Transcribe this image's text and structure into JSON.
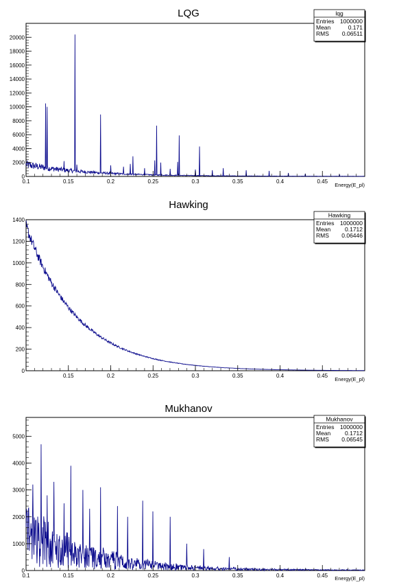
{
  "colors": {
    "line": "#0a0a8c",
    "axis": "#000000",
    "frame": "#000000"
  },
  "chart_data": [
    {
      "type": "line",
      "title": "LQG",
      "xlabel": "Energy(E_pl)",
      "ylabel": "",
      "xlim": [
        0.1,
        0.5
      ],
      "ylim": [
        0,
        22000
      ],
      "xticks": [
        "0.1",
        "0.15",
        "0.2",
        "0.25",
        "0.3",
        "0.35",
        "0.4",
        "0.45"
      ],
      "yticks": [
        "0",
        "2000",
        "4000",
        "6000",
        "8000",
        "10000",
        "12000",
        "14000",
        "16000",
        "18000",
        "20000"
      ],
      "stats": {
        "name": "lqg",
        "entries_label": "Entries",
        "entries": "1000000",
        "mean_label": "Mean",
        "mean": "0.171",
        "rms_label": "RMS",
        "rms": "0.06511"
      },
      "baseline": {
        "start": 1700,
        "decay": 14,
        "floor": 20,
        "noise": 0.35
      },
      "peaks": [
        [
          0.123,
          10500
        ],
        [
          0.125,
          10000
        ],
        [
          0.158,
          20400
        ],
        [
          0.188,
          8900
        ],
        [
          0.226,
          2900
        ],
        [
          0.223,
          1800
        ],
        [
          0.252,
          2300
        ],
        [
          0.254,
          7300
        ],
        [
          0.259,
          2000
        ],
        [
          0.281,
          5900
        ],
        [
          0.279,
          2100
        ],
        [
          0.305,
          4300
        ],
        [
          0.333,
          1200
        ],
        [
          0.36,
          900
        ],
        [
          0.387,
          800
        ],
        [
          0.145,
          2200
        ],
        [
          0.16,
          1700
        ],
        [
          0.2,
          1600
        ],
        [
          0.215,
          1400
        ],
        [
          0.24,
          1200
        ],
        [
          0.27,
          1100
        ],
        [
          0.3,
          1000
        ],
        [
          0.32,
          900
        ],
        [
          0.41,
          500
        ],
        [
          0.43,
          400
        ],
        [
          0.47,
          300
        ]
      ]
    },
    {
      "type": "line",
      "title": "Hawking",
      "xlabel": "Energy(E_pl)",
      "ylabel": "",
      "xlim": [
        0.1,
        0.5
      ],
      "ylim": [
        0,
        1400
      ],
      "xticks": [
        "0.15",
        "0.2",
        "0.25",
        "0.3",
        "0.35",
        "0.4",
        "0.45"
      ],
      "yticks": [
        "0",
        "200",
        "400",
        "600",
        "800",
        "1000",
        "1200",
        "1400"
      ],
      "stats": {
        "name": "Hawking",
        "entries_label": "Entries",
        "entries": "1000000",
        "mean_label": "Mean",
        "mean": "0.1712",
        "rms_label": "RMS",
        "rms": "0.06446"
      },
      "baseline": {
        "start": 1340,
        "decay": 16.5,
        "floor": 0,
        "noise": 0.04
      },
      "peaks": []
    },
    {
      "type": "line",
      "title": "Mukhanov",
      "xlabel": "Energy(E_pl)",
      "ylabel": "",
      "xlim": [
        0.1,
        0.5
      ],
      "ylim": [
        0,
        5700
      ],
      "xticks": [
        "0.1",
        "0.15",
        "0.2",
        "0.25",
        "0.3",
        "0.35",
        "0.4",
        "0.45"
      ],
      "yticks": [
        "0",
        "1000",
        "2000",
        "3000",
        "4000",
        "5000"
      ],
      "stats": {
        "name": "Mukhanov",
        "entries_label": "Entries",
        "entries": "1000000",
        "mean_label": "Mean",
        "mean": "0.1712",
        "rms_label": "RMS",
        "rms": "0.06545"
      },
      "baseline": {
        "start": 1300,
        "decay": 14,
        "floor": 10,
        "noise": 0.9
      },
      "peaks": [
        [
          0.118,
          4700
        ],
        [
          0.153,
          3900
        ],
        [
          0.133,
          3300
        ],
        [
          0.167,
          3000
        ],
        [
          0.188,
          3100
        ],
        [
          0.238,
          2600
        ],
        [
          0.208,
          2400
        ],
        [
          0.25,
          2200
        ],
        [
          0.27,
          2000
        ],
        [
          0.108,
          3200
        ],
        [
          0.125,
          2800
        ],
        [
          0.145,
          2500
        ],
        [
          0.175,
          2300
        ],
        [
          0.22,
          2000
        ],
        [
          0.29,
          1000
        ],
        [
          0.31,
          800
        ],
        [
          0.34,
          500
        ]
      ]
    }
  ]
}
